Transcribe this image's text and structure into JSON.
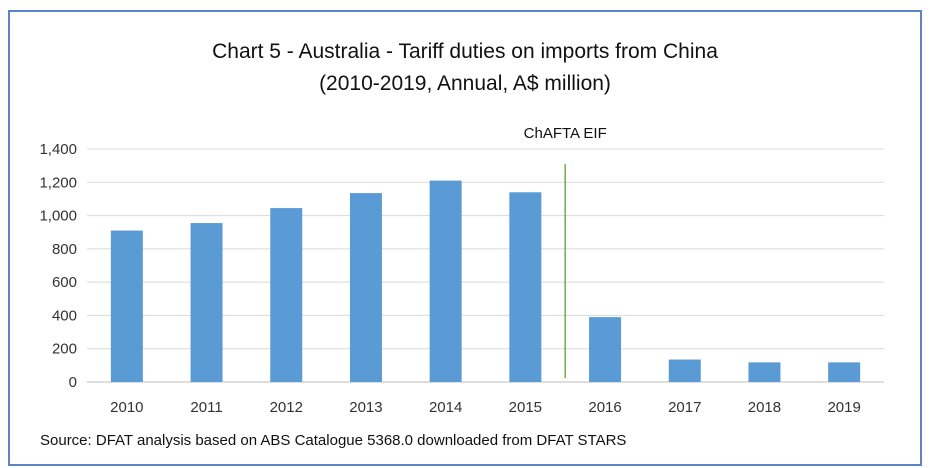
{
  "chart_data": {
    "type": "bar",
    "title_line1": "Chart 5 - Australia - Tariff duties on imports from China",
    "title_line2": "(2010-2019, Annual, A$ million)",
    "categories": [
      "2010",
      "2011",
      "2012",
      "2013",
      "2014",
      "2015",
      "2016",
      "2017",
      "2018",
      "2019"
    ],
    "values": [
      910,
      955,
      1045,
      1135,
      1210,
      1140,
      390,
      135,
      118,
      118
    ],
    "ylim": [
      0,
      1400
    ],
    "yticks": [
      0,
      200,
      400,
      600,
      800,
      1000,
      1200,
      1400
    ],
    "ytick_labels": [
      "0",
      "200",
      "400",
      "600",
      "800",
      "1,000",
      "1,200",
      "1,400"
    ],
    "grid": true,
    "bar_color": "#5b9bd5",
    "annotation": {
      "label": "ChAFTA EIF",
      "between": [
        "2015",
        "2016"
      ],
      "color": "#70ad47"
    },
    "source": "Source: DFAT analysis based on ABS Catalogue 5368.0 downloaded from DFAT STARS"
  }
}
